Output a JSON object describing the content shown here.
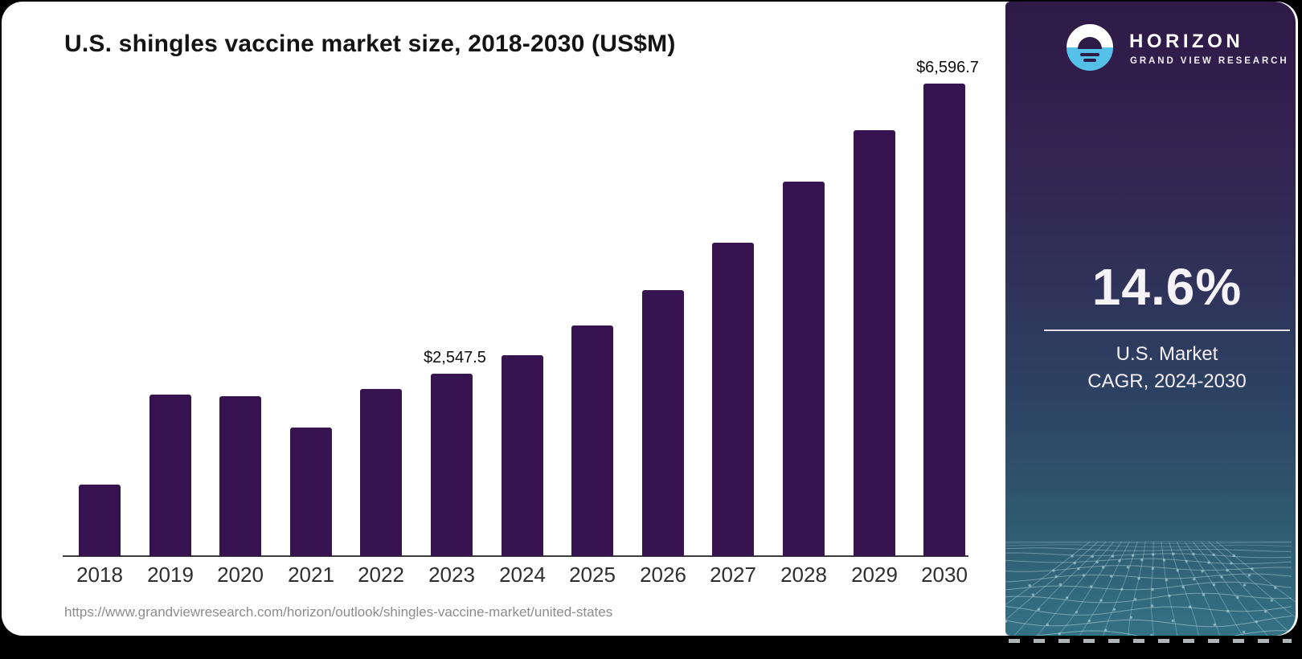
{
  "page": {
    "background_color": "#000000",
    "card_color": "#ffffff"
  },
  "chart_data": {
    "type": "bar",
    "title": "U.S. shingles vaccine market size, 2018-2030 (US$M)",
    "categories": [
      "2018",
      "2019",
      "2020",
      "2021",
      "2022",
      "2023",
      "2024",
      "2025",
      "2026",
      "2027",
      "2028",
      "2029",
      "2030"
    ],
    "values": [
      995,
      2250,
      2230,
      1790,
      2330,
      2547.5,
      2800,
      3215,
      3710,
      4380,
      5230,
      5950,
      6596.7
    ],
    "labeled_values": {
      "2023": 2547.5,
      "2030": 6596.7
    },
    "value_labels": [
      {
        "index": 5,
        "text": "$2,547.5"
      },
      {
        "index": 12,
        "text": "$6,596.7"
      }
    ],
    "xlabel": "",
    "ylabel": "",
    "ylim": [
      0,
      6596.7
    ],
    "grid": false,
    "legend": false,
    "bar_color": "#371450",
    "axis_color": "#3c3c3c"
  },
  "footer": {
    "source_url": "https://www.grandviewresearch.com/horizon/outlook/shingles-vaccine-market/united-states"
  },
  "sidebar": {
    "logo": {
      "brand": "HORIZON",
      "sub_brand": "GRAND VIEW RESEARCH",
      "icon": "horizon-sun-icon",
      "icon_blue": "#56c1e8",
      "icon_dark": "#2d1c46"
    },
    "stat": {
      "value": "14.6%",
      "label_line1": "U.S. Market",
      "label_line2": "CAGR, 2024-2030"
    },
    "gradient_top": "#2e1a46",
    "gradient_bottom": "#347185",
    "mesh_line_color": "#aed3da"
  }
}
